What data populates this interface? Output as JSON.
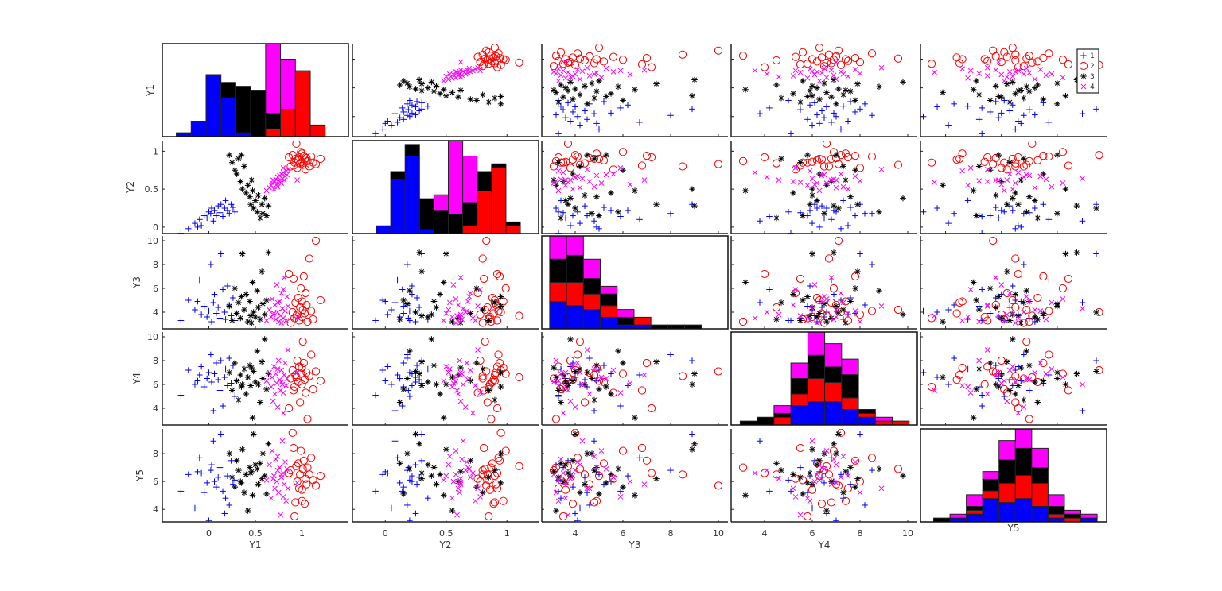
{
  "chart_data": {
    "type": "scatter-matrix",
    "variables": [
      "Y1",
      "Y2",
      "Y3",
      "Y4",
      "Y5"
    ],
    "groups": [
      {
        "name": "1",
        "color": "#0000ff",
        "marker": "+"
      },
      {
        "name": "2",
        "color": "#ff0000",
        "marker": "o"
      },
      {
        "name": "3",
        "color": "#000000",
        "marker": "*"
      },
      {
        "name": "4",
        "color": "#ff00ff",
        "marker": "x"
      }
    ],
    "legend": {
      "location": "top-right",
      "entries": [
        "1",
        "2",
        "3",
        "4"
      ]
    },
    "axes": {
      "Y1": {
        "xlim": [
          -0.5,
          1.5
        ],
        "ylim": [
          -0.35,
          1.27
        ],
        "ticks": [
          0,
          0.5,
          1
        ]
      },
      "Y2": {
        "xlim": [
          -0.27,
          1.26
        ],
        "ylim": [
          -0.085,
          1.14
        ],
        "ticks": [
          0,
          0.5,
          1
        ]
      },
      "Y3": {
        "xlim": [
          2.6,
          10.4
        ],
        "ylim": [
          2.6,
          10.4
        ],
        "ticks": [
          4,
          6,
          8,
          10
        ]
      },
      "Y4": {
        "xlim": [
          2.6,
          10.4
        ],
        "ylim": [
          2.6,
          10.4
        ],
        "ticks": [
          4,
          6,
          8,
          10
        ]
      },
      "Y5": {
        "xlim": [
          3.1,
          9.77
        ],
        "ylim": [
          3.1,
          9.77
        ],
        "ticks": [
          4,
          6,
          8
        ]
      }
    },
    "histograms": {
      "stacking_order": [
        "1",
        "2",
        "3",
        "4"
      ],
      "ylim": [
        0,
        24
      ],
      "Y1": {
        "range": [
          -0.35,
          1.25
        ],
        "counts": [
          [
            1,
            0,
            0,
            0
          ],
          [
            4,
            0,
            0,
            0
          ],
          [
            16,
            0,
            0,
            0
          ],
          [
            10,
            0,
            4,
            0
          ],
          [
            1,
            0,
            12,
            0
          ],
          [
            0,
            0,
            12,
            0
          ],
          [
            0,
            2,
            4,
            18
          ],
          [
            0,
            7,
            0,
            13
          ],
          [
            0,
            17,
            0,
            0
          ],
          [
            0,
            3,
            0,
            0
          ]
        ]
      },
      "Y2": {
        "range": [
          -0.074,
          1.11
        ],
        "counts": [
          [
            2,
            0,
            0,
            0
          ],
          [
            14,
            0,
            2,
            0
          ],
          [
            20,
            0,
            3,
            0
          ],
          [
            1,
            0,
            8,
            0
          ],
          [
            0,
            0,
            6,
            4
          ],
          [
            0,
            0,
            5,
            19
          ],
          [
            0,
            2,
            6,
            12
          ],
          [
            0,
            11,
            5,
            0
          ],
          [
            0,
            17,
            1,
            0
          ],
          [
            0,
            2,
            1,
            0
          ]
        ]
      },
      "Y3": {
        "range": [
          2.93,
          10.0
        ],
        "counts": [
          [
            7,
            5,
            6,
            6
          ],
          [
            6,
            6,
            7,
            5
          ],
          [
            5,
            4,
            4,
            5
          ],
          [
            3,
            3,
            3,
            2
          ],
          [
            1,
            0,
            2,
            2
          ],
          [
            1,
            2,
            0,
            0
          ],
          [
            0,
            0,
            1,
            0
          ],
          [
            0,
            0,
            1,
            0
          ],
          [
            0,
            0,
            1,
            0
          ],
          [
            0,
            0,
            0,
            0
          ]
        ]
      },
      "Y4": {
        "range": [
          2.98,
          10.06
        ],
        "counts": [
          [
            0,
            0,
            1,
            0
          ],
          [
            0,
            0,
            2,
            0
          ],
          [
            0,
            2,
            1,
            2
          ],
          [
            5,
            3,
            4,
            4
          ],
          [
            6,
            6,
            6,
            6
          ],
          [
            6,
            5,
            4,
            6
          ],
          [
            4,
            3,
            6,
            4
          ],
          [
            2,
            1,
            1,
            0
          ],
          [
            0,
            1,
            0,
            1
          ],
          [
            0,
            1,
            0,
            0
          ]
        ]
      },
      "Y5": {
        "range": [
          3.57,
          9.43
        ],
        "counts": [
          [
            0,
            0,
            1,
            0
          ],
          [
            1,
            0,
            0,
            1
          ],
          [
            2,
            1,
            1,
            3
          ],
          [
            6,
            2,
            3,
            2
          ],
          [
            5,
            5,
            6,
            5
          ],
          [
            6,
            6,
            7,
            5
          ],
          [
            4,
            6,
            4,
            5
          ],
          [
            1,
            1,
            2,
            3
          ],
          [
            0,
            1,
            1,
            1
          ],
          [
            1,
            0,
            0,
            1
          ]
        ]
      }
    },
    "points": {
      "1": [
        [
          -0.3,
          -0.08,
          3.3,
          5.1,
          5.3
        ],
        [
          -0.22,
          -0.02,
          5.0,
          7.2,
          6.5
        ],
        [
          -0.15,
          0.05,
          4.2,
          6.0,
          4.1
        ],
        [
          -0.1,
          0.1,
          6.7,
          6.8,
          7.7
        ],
        [
          -0.08,
          0.02,
          3.8,
          7.5,
          6.6
        ],
        [
          -0.05,
          0.15,
          4.5,
          5.8,
          5.2
        ],
        [
          -0.02,
          0.12,
          3.6,
          6.5,
          5.9
        ],
        [
          0.0,
          0.2,
          4.1,
          7.0,
          3.2
        ],
        [
          0.02,
          0.18,
          8.0,
          8.5,
          6.8
        ],
        [
          0.03,
          0.25,
          3.2,
          6.2,
          7.2
        ],
        [
          0.05,
          0.08,
          4.8,
          3.8,
          8.9
        ],
        [
          0.06,
          0.22,
          5.5,
          6.9,
          6.0
        ],
        [
          0.08,
          0.15,
          3.9,
          7.8,
          5.6
        ],
        [
          0.1,
          0.28,
          4.4,
          6.4,
          6.3
        ],
        [
          0.12,
          0.19,
          3.5,
          5.5,
          7.0
        ],
        [
          0.13,
          0.3,
          8.9,
          8.0,
          9.4
        ],
        [
          0.15,
          0.14,
          5.9,
          4.2,
          5.3
        ],
        [
          0.17,
          0.25,
          4.0,
          6.6,
          3.7
        ],
        [
          0.18,
          0.35,
          3.4,
          7.3,
          4.8
        ],
        [
          0.2,
          0.22,
          6.2,
          5.9,
          6.4
        ],
        [
          0.22,
          0.18,
          4.6,
          8.2,
          4.3
        ],
        [
          0.24,
          0.3,
          3.7,
          6.1,
          7.5
        ],
        [
          0.26,
          0.26,
          5.2,
          7.6,
          5.8
        ],
        [
          0.28,
          0.2,
          3.3,
          5.0,
          6.1
        ],
        [
          -0.12,
          0.0,
          4.9,
          6.3,
          6.7
        ]
      ],
      "2": [
        [
          0.88,
          0.8,
          3.1,
          6.5,
          6.8
        ],
        [
          0.9,
          0.95,
          4.0,
          7.2,
          9.5
        ],
        [
          0.92,
          0.85,
          3.5,
          5.8,
          3.5
        ],
        [
          0.93,
          0.9,
          4.8,
          6.8,
          4.5
        ],
        [
          0.95,
          0.78,
          3.8,
          8.0,
          6.0
        ],
        [
          0.96,
          0.88,
          5.2,
          6.2,
          7.3
        ],
        [
          0.97,
          0.92,
          3.3,
          7.5,
          5.5
        ],
        [
          0.98,
          0.84,
          4.4,
          4.5,
          6.5
        ],
        [
          0.99,
          0.99,
          6.0,
          6.9,
          8.2
        ],
        [
          1.0,
          0.86,
          3.6,
          6.0,
          5.4
        ],
        [
          1.01,
          0.82,
          4.2,
          9.6,
          6.9
        ],
        [
          1.02,
          0.94,
          7.0,
          7.8,
          7.5
        ],
        [
          1.03,
          0.89,
          3.9,
          6.4,
          4.4
        ],
        [
          1.04,
          0.76,
          5.6,
          5.3,
          6.2
        ],
        [
          1.05,
          0.91,
          4.6,
          7.0,
          5.8
        ],
        [
          1.06,
          0.87,
          3.2,
          3.1,
          7.0
        ],
        [
          1.08,
          0.8,
          8.5,
          6.7,
          6.5
        ],
        [
          1.1,
          0.93,
          4.1,
          8.5,
          7.7
        ],
        [
          1.12,
          0.85,
          3.4,
          5.6,
          6.1
        ],
        [
          1.15,
          0.83,
          10.0,
          7.1,
          5.7
        ],
        [
          1.2,
          0.9,
          5.0,
          6.3,
          6.4
        ],
        [
          0.86,
          0.92,
          7.2,
          4.0,
          6.6
        ],
        [
          0.94,
          1.1,
          3.7,
          6.6,
          7.1
        ],
        [
          1.0,
          0.97,
          4.9,
          7.4,
          4.6
        ],
        [
          0.91,
          0.81,
          6.8,
          5.5,
          8.4
        ]
      ],
      "3": [
        [
          0.22,
          0.95,
          4.5,
          7.0,
          8.0
        ],
        [
          0.25,
          0.85,
          3.3,
          5.5,
          6.3
        ],
        [
          0.28,
          0.75,
          6.0,
          7.8,
          5.6
        ],
        [
          0.3,
          0.7,
          3.9,
          6.3,
          7.5
        ],
        [
          0.32,
          0.9,
          4.8,
          4.7,
          6.8
        ],
        [
          0.34,
          0.6,
          3.5,
          6.8,
          6.0
        ],
        [
          0.36,
          0.5,
          8.9,
          6.0,
          8.3
        ],
        [
          0.38,
          0.8,
          4.2,
          7.3,
          5.2
        ],
        [
          0.4,
          0.45,
          5.5,
          5.2,
          6.5
        ],
        [
          0.42,
          0.55,
          3.2,
          6.6,
          3.9
        ],
        [
          0.44,
          0.4,
          4.9,
          7.6,
          7.0
        ],
        [
          0.45,
          0.3,
          3.7,
          5.9,
          6.6
        ],
        [
          0.47,
          0.48,
          6.5,
          3.2,
          5.0
        ],
        [
          0.48,
          0.25,
          4.0,
          7.1,
          9.4
        ],
        [
          0.5,
          0.35,
          3.6,
          6.2,
          7.2
        ],
        [
          0.52,
          0.2,
          5.8,
          8.8,
          6.9
        ],
        [
          0.53,
          0.42,
          4.4,
          6.0,
          5.8
        ],
        [
          0.55,
          0.12,
          3.4,
          4.5,
          7.3
        ],
        [
          0.57,
          0.3,
          7.4,
          7.9,
          6.2
        ],
        [
          0.58,
          0.18,
          4.7,
          6.5,
          8.0
        ],
        [
          0.6,
          0.38,
          3.8,
          9.8,
          6.4
        ],
        [
          0.62,
          0.15,
          5.0,
          5.6,
          5.1
        ],
        [
          0.64,
          0.28,
          9.0,
          6.9,
          8.7
        ],
        [
          0.46,
          0.62,
          3.1,
          7.4,
          6.7
        ],
        [
          0.35,
          0.95,
          5.3,
          5.8,
          5.9
        ]
      ],
      "4": [
        [
          0.62,
          0.48,
          3.3,
          6.3,
          6.1
        ],
        [
          0.65,
          0.52,
          4.2,
          7.0,
          7.2
        ],
        [
          0.67,
          0.55,
          3.6,
          5.8,
          4.8
        ],
        [
          0.68,
          0.58,
          5.1,
          6.6,
          8.2
        ],
        [
          0.7,
          0.5,
          3.9,
          7.5,
          6.4
        ],
        [
          0.71,
          0.6,
          4.6,
          5.2,
          5.5
        ],
        [
          0.72,
          0.63,
          3.4,
          6.9,
          7.6
        ],
        [
          0.73,
          0.56,
          6.3,
          6.1,
          6.0
        ],
        [
          0.74,
          0.66,
          4.0,
          4.1,
          6.8
        ],
        [
          0.75,
          0.61,
          3.2,
          8.0,
          5.2
        ],
        [
          0.76,
          0.68,
          4.9,
          6.4,
          7.0
        ],
        [
          0.77,
          0.59,
          3.7,
          5.5,
          3.6
        ],
        [
          0.78,
          0.7,
          5.6,
          7.2,
          6.3
        ],
        [
          0.79,
          0.64,
          4.3,
          6.0,
          8.9
        ],
        [
          0.8,
          0.72,
          3.5,
          3.6,
          6.6
        ],
        [
          0.81,
          0.62,
          6.9,
          6.8,
          5.8
        ],
        [
          0.82,
          0.67,
          4.1,
          7.8,
          7.4
        ],
        [
          0.83,
          0.74,
          3.3,
          5.9,
          4.6
        ],
        [
          0.84,
          0.69,
          5.3,
          6.5,
          6.9
        ],
        [
          0.85,
          0.76,
          4.5,
          8.9,
          5.5
        ],
        [
          0.69,
          0.62,
          3.8,
          4.6,
          6.2
        ],
        [
          0.74,
          0.53,
          4.8,
          7.3,
          7.8
        ],
        [
          0.78,
          0.58,
          3.1,
          6.2,
          6.5
        ],
        [
          0.8,
          0.78,
          5.9,
          5.3,
          4.9
        ],
        [
          0.95,
          0.62,
          3.6,
          7.0,
          5.9
        ]
      ]
    }
  }
}
